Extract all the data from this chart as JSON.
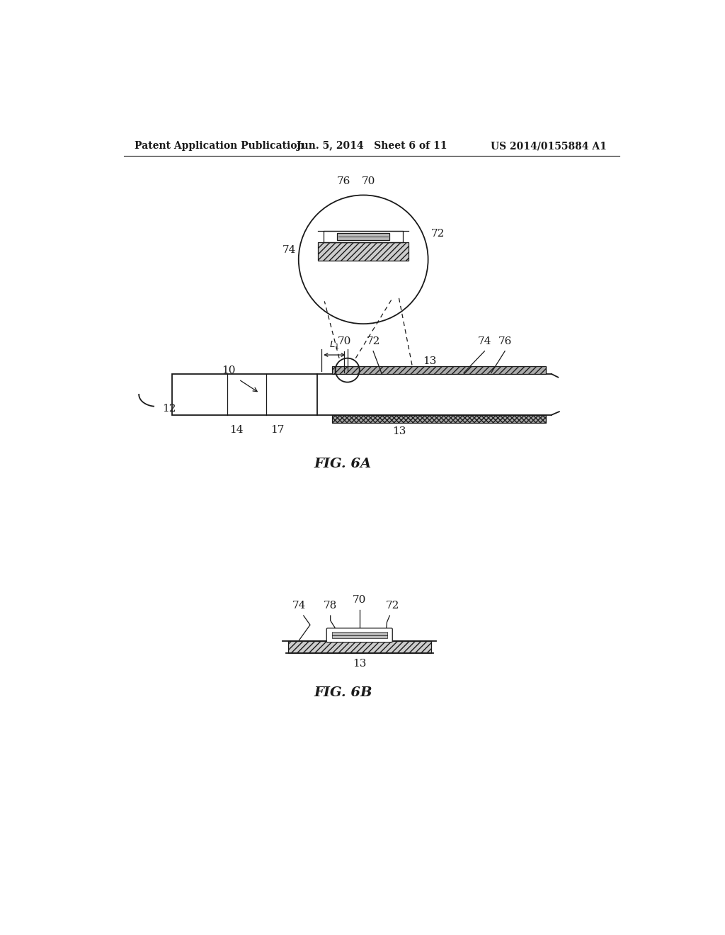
{
  "bg_color": "#ffffff",
  "header_left": "Patent Application Publication",
  "header_mid": "Jun. 5, 2014   Sheet 6 of 11",
  "header_right": "US 2014/0155884 A1",
  "fig6a_label": "FIG. 6A",
  "fig6b_label": "FIG. 6B"
}
